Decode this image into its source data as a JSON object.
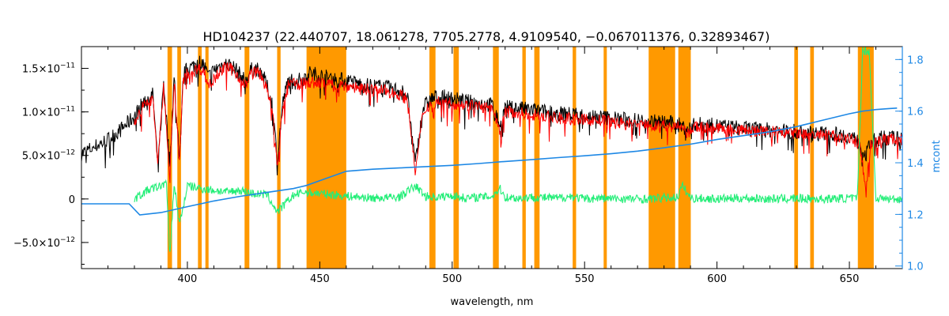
{
  "chart_data": {
    "type": "line",
    "title": "HD104237    (22.440707, 18.061278, 7705.2778, 4.9109540, −0.067011376, 0.32893467)",
    "xlabel": "wavelength, nm",
    "ylabel": "",
    "y2label": "mcont",
    "xlim": [
      360,
      670
    ],
    "ylim": [
      -8e-12,
      1.75e-11
    ],
    "y2lim": [
      0.99,
      1.85
    ],
    "x_ticks": [
      400,
      450,
      500,
      550,
      600,
      650
    ],
    "x_tick_labels": [
      "400",
      "450",
      "500",
      "550",
      "600",
      "650"
    ],
    "y_ticks": [
      -5e-12,
      0,
      5e-12,
      1e-11,
      1.5e-11
    ],
    "y_tick_labels": [
      {
        "mant": "−5.0×10",
        "exp": "−12"
      },
      {
        "mant": "0",
        "exp": ""
      },
      {
        "mant": "5.0×10",
        "exp": "−12"
      },
      {
        "mant": "1.0×10",
        "exp": "−11"
      },
      {
        "mant": "1.5×10",
        "exp": "−11"
      }
    ],
    "y2_ticks": [
      1.0,
      1.2,
      1.4,
      1.6,
      1.8
    ],
    "y2_tick_labels": [
      "1.0",
      "1.2",
      "1.4",
      "1.6",
      "1.8"
    ],
    "grid": false,
    "masked_regions": [
      [
        392.5,
        394.2
      ],
      [
        396.2,
        397.6
      ],
      [
        404.0,
        405.4
      ],
      [
        406.8,
        408.0
      ],
      [
        421.6,
        423.4
      ],
      [
        433.9,
        435.2
      ],
      [
        445.0,
        460.0
      ],
      [
        491.4,
        493.7
      ],
      [
        500.5,
        502.5
      ],
      [
        515.4,
        517.6
      ],
      [
        526.5,
        527.8
      ],
      [
        531.0,
        533.0
      ],
      [
        545.5,
        546.8
      ],
      [
        557.2,
        558.4
      ],
      [
        574.2,
        584.2
      ],
      [
        585.4,
        590.1
      ],
      [
        629.2,
        630.6
      ],
      [
        635.2,
        636.6
      ],
      [
        653.2,
        659.2
      ]
    ],
    "series": [
      {
        "role": "observed-spectrum",
        "color": "#000000",
        "x": [
          360,
          365,
          370,
          375,
          380,
          383,
          385,
          387,
          388.9,
          391,
          393.4,
          395,
          397,
          398.5,
          400,
          402,
          404,
          406,
          408,
          410,
          412,
          414,
          416,
          418,
          420,
          422,
          424,
          426,
          428,
          430,
          432,
          434,
          436,
          438,
          440,
          443,
          446,
          450,
          455,
          460,
          465,
          470,
          475,
          480,
          483,
          486.1,
          489,
          492,
          495,
          500,
          505,
          510,
          515,
          518,
          520,
          525,
          530,
          535,
          540,
          545,
          550,
          555,
          560,
          565,
          570,
          575,
          580,
          585,
          589,
          592,
          600,
          610,
          620,
          630,
          640,
          645,
          650,
          654,
          656.3,
          658,
          662,
          666,
          670
        ],
        "y": [
          5.2e-12,
          6e-12,
          6.8e-12,
          8e-12,
          9.5e-12,
          1.1e-11,
          1.15e-11,
          1.2e-11,
          3.5e-12,
          1.35e-11,
          4e-12,
          1.4e-11,
          4.5e-12,
          1.42e-11,
          1.5e-11,
          1.52e-11,
          1.58e-11,
          1.55e-11,
          1.4e-11,
          1.48e-11,
          1.52e-11,
          1.55e-11,
          1.54e-11,
          1.5e-11,
          1.42e-11,
          1.35e-11,
          1.48e-11,
          1.5e-11,
          1.46e-11,
          1.3e-11,
          1.1e-11,
          4.5e-12,
          1.1e-11,
          1.35e-11,
          1.38e-11,
          1.36e-11,
          1.45e-11,
          1.42e-11,
          1.38e-11,
          1.36e-11,
          1.32e-11,
          1.3e-11,
          1.28e-11,
          1.25e-11,
          1.2e-11,
          4e-12,
          1.05e-11,
          1.15e-11,
          1.18e-11,
          1.15e-11,
          1.12e-11,
          1.1e-11,
          1.08e-11,
          8.5e-12,
          1.05e-11,
          1.04e-11,
          1.02e-11,
          1e-11,
          9.8e-12,
          9.7e-12,
          9.6e-12,
          9.4e-12,
          9.3e-12,
          9.1e-12,
          9e-12,
          8.9e-12,
          8.8e-12,
          8.6e-12,
          8e-12,
          8.6e-12,
          8.4e-12,
          8.1e-12,
          7.9e-12,
          7.7e-12,
          7.5e-12,
          7.4e-12,
          7.2e-12,
          6.5e-12,
          5e-12,
          6.5e-12,
          7e-12,
          7e-12,
          6.8e-12
        ]
      },
      {
        "role": "model-spectrum",
        "color": "#ff0000",
        "x": [
          380,
          383,
          385,
          387,
          388.9,
          391,
          393.4,
          395,
          397,
          398.5,
          400,
          402,
          404,
          406,
          408,
          410,
          412,
          414,
          416,
          418,
          420,
          422,
          424,
          426,
          428,
          430,
          432,
          434,
          436,
          438,
          440,
          443,
          446,
          450,
          455,
          460,
          465,
          470,
          475,
          480,
          483,
          486.1,
          489,
          492,
          495,
          500,
          505,
          510,
          515,
          518,
          520,
          525,
          530,
          535,
          540,
          545,
          550,
          555,
          560,
          565,
          570,
          575,
          580,
          585,
          589,
          592,
          600,
          610,
          620,
          630,
          640,
          645,
          650,
          654,
          656.3,
          658,
          662,
          666,
          670
        ],
        "y": [
          9e-12,
          1.05e-11,
          1.1e-11,
          1.15e-11,
          4e-12,
          1.3e-11,
          3e-12,
          1.35e-11,
          4e-12,
          1.38e-11,
          1.45e-11,
          1.46e-11,
          1.5e-11,
          1.48e-11,
          1.3e-11,
          1.42e-11,
          1.46e-11,
          1.5e-11,
          1.5e-11,
          1.46e-11,
          1.38e-11,
          1.3e-11,
          1.44e-11,
          1.46e-11,
          1.42e-11,
          1.25e-11,
          1.05e-11,
          3.5e-12,
          1.05e-11,
          1.3e-11,
          1.33e-11,
          1.32e-11,
          1.34e-11,
          1.33e-11,
          1.32e-11,
          1.3e-11,
          1.28e-11,
          1.26e-11,
          1.24e-11,
          1.2e-11,
          1.15e-11,
          3e-12,
          1e-11,
          1.1e-11,
          1.12e-11,
          1.1e-11,
          1.08e-11,
          1.06e-11,
          1.04e-11,
          7.5e-12,
          1e-11,
          9.9e-12,
          9.7e-12,
          9.5e-12,
          9.3e-12,
          9.2e-12,
          9.1e-12,
          9e-12,
          8.9e-12,
          8.7e-12,
          8.6e-12,
          8.5e-12,
          8.4e-12,
          8.3e-12,
          7.5e-12,
          8.3e-12,
          8.1e-12,
          7.9e-12,
          7.7e-12,
          7.5e-12,
          7.3e-12,
          7.2e-12,
          7e-12,
          6.2e-12,
          1e-12,
          6.2e-12,
          6.8e-12,
          6.9e-12,
          6.7e-12
        ]
      },
      {
        "role": "residuals",
        "color": "#22ee77",
        "x": [
          380,
          385,
          390,
          392,
          393.4,
          395,
          397,
          400,
          405,
          410,
          415,
          420,
          425,
          430,
          434,
          440,
          444,
          461,
          470,
          480,
          486.1,
          490,
          495,
          500,
          505,
          510,
          515,
          518,
          520,
          525,
          530,
          540,
          545,
          550,
          555,
          560,
          570,
          574,
          585,
          587,
          590,
          600,
          610,
          620,
          630,
          640,
          650,
          653,
          655,
          656.3,
          657.5,
          660,
          665,
          670
        ],
        "y": [
          0,
          1e-12,
          1.5e-12,
          2e-12,
          -6.5e-12,
          1.8e-12,
          -3e-12,
          1.5e-12,
          1.2e-12,
          1e-12,
          8e-13,
          1e-12,
          6e-13,
          5e-13,
          -1.5e-12,
          4e-13,
          8e-13,
          3e-13,
          1e-13,
          2e-13,
          1.5e-12,
          3e-13,
          2e-13,
          4e-13,
          1e-13,
          2e-13,
          3e-13,
          1.2e-12,
          2e-13,
          1e-13,
          2e-13,
          1e-13,
          3e-13,
          0.0,
          1e-13,
          5e-14,
          0.0,
          0.0,
          2e-13,
          1.5e-12,
          1e-13,
          0.0,
          1e-13,
          0.0,
          5e-14,
          0.0,
          1e-13,
          0.0,
          1.7e-11,
          1.7e-11,
          1.7e-11,
          1e-13,
          0.0,
          0.0
        ]
      },
      {
        "role": "continuum",
        "axis": "right",
        "color": "#1e88e5",
        "x": [
          360,
          370,
          378,
          382,
          390,
          400,
          410,
          420,
          430,
          440,
          444.9,
          460,
          470,
          480,
          490,
          500,
          510,
          520,
          530,
          540,
          550,
          560,
          570,
          580,
          590,
          600,
          610,
          620,
          630,
          640,
          650,
          655,
          660,
          665,
          668
        ],
        "y": [
          1.241,
          1.241,
          1.241,
          1.198,
          1.207,
          1.23,
          1.252,
          1.27,
          1.285,
          1.3,
          1.312,
          1.367,
          1.375,
          1.38,
          1.385,
          1.39,
          1.397,
          1.405,
          1.412,
          1.42,
          1.427,
          1.435,
          1.445,
          1.458,
          1.472,
          1.49,
          1.505,
          1.52,
          1.54,
          1.565,
          1.59,
          1.6,
          1.606,
          1.61,
          1.612
        ]
      }
    ],
    "colors": {
      "masked": "#ff9900",
      "highlight": "#ffff00",
      "axis": "#000000",
      "right_axis": "#1e88e5"
    }
  }
}
